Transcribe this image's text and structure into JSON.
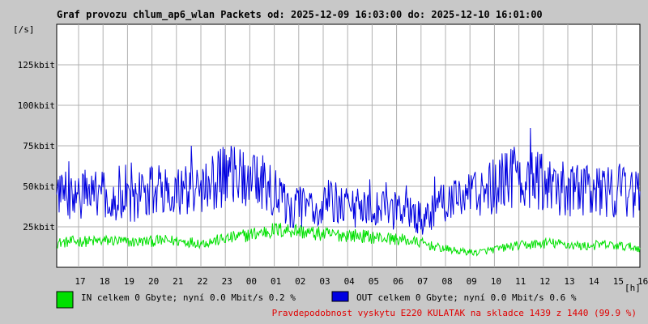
{
  "chart_data": {
    "type": "line",
    "title": "Graf provozu chlum_ap6_wlan Packets od: 2025-12-09 16:03:00 do: 2025-12-10 16:01:00",
    "ylabel": "[/s]",
    "xlabel": "[h]",
    "ylim": [
      0,
      150000
    ],
    "grid": true,
    "y_ticks": [
      {
        "value": 25000,
        "label": "25kbit"
      },
      {
        "value": 50000,
        "label": "50kbit"
      },
      {
        "value": 75000,
        "label": "75kbit"
      },
      {
        "value": 100000,
        "label": "100kbit"
      },
      {
        "value": 125000,
        "label": "125kbit"
      }
    ],
    "x_ticks": [
      "17",
      "18",
      "19",
      "20",
      "21",
      "22",
      "23",
      "00",
      "01",
      "02",
      "03",
      "04",
      "05",
      "06",
      "07",
      "08",
      "09",
      "10",
      "11",
      "12",
      "13",
      "14",
      "15",
      "16"
    ],
    "series": [
      {
        "name": "IN",
        "color": "#00e000",
        "values": [
          15000,
          16000,
          16000,
          16500,
          15500,
          16000,
          16500,
          16000,
          15000,
          17000,
          19000,
          21000,
          23000,
          23000,
          21000,
          20000,
          20000,
          19000,
          18000,
          17000,
          15000,
          12000,
          10000,
          9000,
          11000,
          13000,
          14000,
          15000,
          14000,
          13000,
          14000,
          13000,
          12000
        ]
      },
      {
        "name": "OUT",
        "color": "#0000e0",
        "values": [
          48000,
          40000,
          50000,
          42000,
          40000,
          46000,
          47000,
          49000,
          47000,
          56000,
          55000,
          55000,
          45000,
          36000,
          38000,
          40000,
          39000,
          34000,
          35000,
          34000,
          30000,
          38000,
          41000,
          45000,
          50000,
          56000,
          54000,
          51000,
          48000,
          47000,
          45000,
          48000,
          44000
        ]
      }
    ],
    "legend": [
      {
        "color": "#00e000",
        "label": "IN celkem 0 Gbyte; nyní   0.0 Mbit/s 0.2 %"
      },
      {
        "color": "#0000e0",
        "label": "OUT celkem 0 Gbyte; nyní   0.0 Mbit/s 0.6 %"
      }
    ],
    "footer_note": "Pravdepodobnost vyskytu E220 KULATAK na skladce 1439 z 1440 (99.9 %)"
  }
}
